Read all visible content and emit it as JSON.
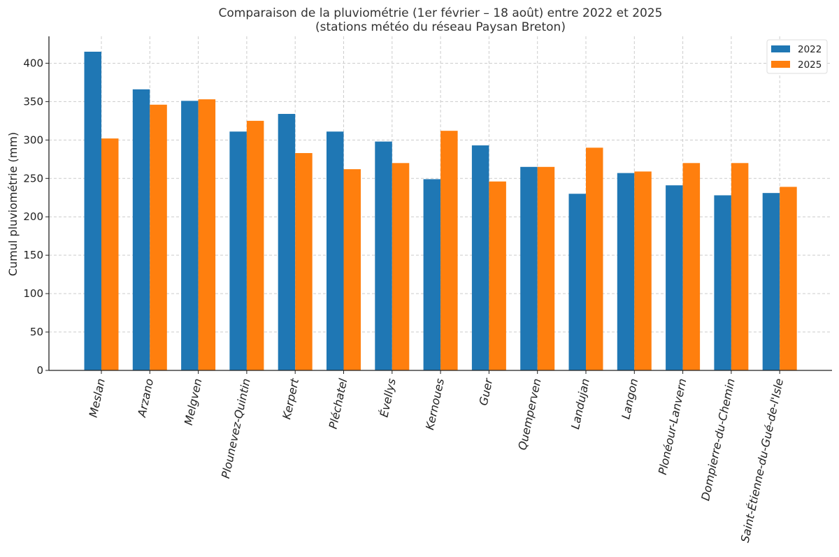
{
  "chart_data": {
    "type": "bar",
    "title": "Comparaison de la pluviométrie (1er février – 18 août) entre 2022 et 2025",
    "subtitle": "(stations météo du réseau Paysan Breton)",
    "xlabel": "",
    "ylabel": "Cumul pluviométrie (mm)",
    "ylim": [
      0,
      435
    ],
    "yticks": [
      0,
      50,
      100,
      150,
      200,
      250,
      300,
      350,
      400
    ],
    "grid": true,
    "legend_position": "top-right",
    "categories": [
      "Meslan",
      "Arzano",
      "Melgven",
      "Plounevez-Quintin",
      "Kerpert",
      "Pléchatel",
      "Évellys",
      "Kernoues",
      "Guer",
      "Quemperven",
      "Landujan",
      "Langon",
      "Plonéour-Lanvern",
      "Dompierre-du-Chemin",
      "Saint-Étienne-du-Gué-de-l'Isle"
    ],
    "series": [
      {
        "name": "2022",
        "color": "#1f77b4",
        "values": [
          415,
          366,
          351,
          311,
          334,
          311,
          298,
          249,
          293,
          265,
          230,
          257,
          241,
          228,
          231
        ]
      },
      {
        "name": "2025",
        "color": "#ff7f0e",
        "values": [
          302,
          346,
          353,
          325,
          283,
          262,
          270,
          312,
          246,
          265,
          290,
          259,
          270,
          270,
          239
        ]
      }
    ]
  }
}
